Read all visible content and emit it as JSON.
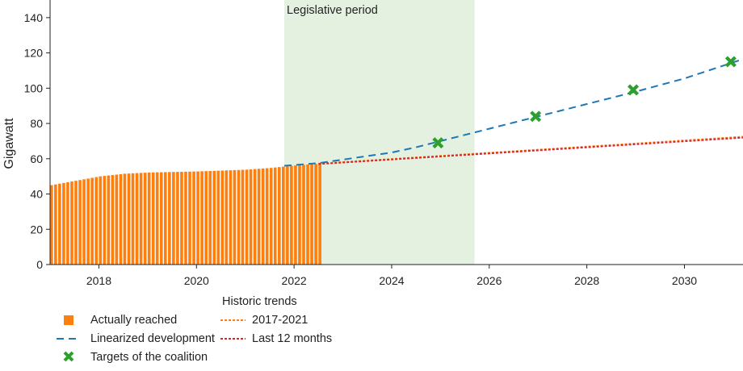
{
  "chart_data": {
    "type": "bar",
    "ylabel": "Gigawatt",
    "xlabel": "",
    "xlim": [
      2017.0,
      2031.2
    ],
    "ylim": [
      0,
      150
    ],
    "xticks": [
      2018,
      2020,
      2022,
      2024,
      2026,
      2028,
      2030
    ],
    "yticks": [
      0,
      20,
      40,
      60,
      80,
      100,
      120,
      140
    ],
    "grid": false,
    "shaded_region": {
      "label": "Legislative period",
      "x_start": 2021.8,
      "x_end": 2025.7,
      "color": "#e4f1e1"
    },
    "series": [
      {
        "name": "Actually reached",
        "kind": "bar",
        "color": "#ff7f0e",
        "x": [
          2017.0,
          2017.5,
          2018.0,
          2018.5,
          2019.0,
          2019.5,
          2020.0,
          2020.5,
          2021.0,
          2021.5,
          2022.0,
          2022.5
        ],
        "values": [
          45,
          47.5,
          50,
          51.5,
          52.2,
          52.5,
          52.8,
          53.3,
          53.8,
          54.8,
          56.2,
          57.2
        ]
      },
      {
        "name": "Linearized development",
        "kind": "line",
        "style": "dashed",
        "color": "#1f77b4",
        "x": [
          2021.8,
          2022.5,
          2023.0,
          2023.5,
          2024.0,
          2024.5,
          2025.0,
          2026.0,
          2027.0,
          2028.0,
          2029.0,
          2030.0,
          2031.2
        ],
        "values": [
          56,
          57.5,
          59.5,
          61.5,
          63.5,
          66.5,
          70,
          77,
          84,
          91,
          98,
          105.5,
          116.5
        ]
      },
      {
        "name": "Targets of the coalition",
        "kind": "scatter",
        "marker": "x",
        "color": "#2ca02c",
        "x": [
          2024.95,
          2026.95,
          2028.95,
          2030.95
        ],
        "values": [
          69,
          84,
          99,
          115
        ]
      },
      {
        "name": "2017-2021",
        "kind": "line",
        "style": "dotted",
        "color": "#ff7f0e",
        "x": [
          2022.5,
          2031.2
        ],
        "values": [
          57.2,
          72.5
        ]
      },
      {
        "name": "Last 12 months",
        "kind": "line",
        "style": "dotted",
        "color": "#d62728",
        "x": [
          2022.5,
          2031.2
        ],
        "values": [
          57.0,
          72.0
        ]
      }
    ],
    "legend": {
      "placement": "bottom-left",
      "group_title": "Historic trends",
      "items": [
        {
          "label": "Actually reached",
          "symbol": "square",
          "color": "#ff7f0e"
        },
        {
          "label": "Linearized development",
          "symbol": "dash",
          "color": "#1f77b4"
        },
        {
          "label": "Targets of the coalition",
          "symbol": "x",
          "color": "#2ca02c"
        },
        {
          "label": "2017-2021",
          "symbol": "dot-line",
          "color": "#ff7f0e"
        },
        {
          "label": "Last 12 months",
          "symbol": "dot-line",
          "color": "#d62728"
        }
      ]
    }
  }
}
